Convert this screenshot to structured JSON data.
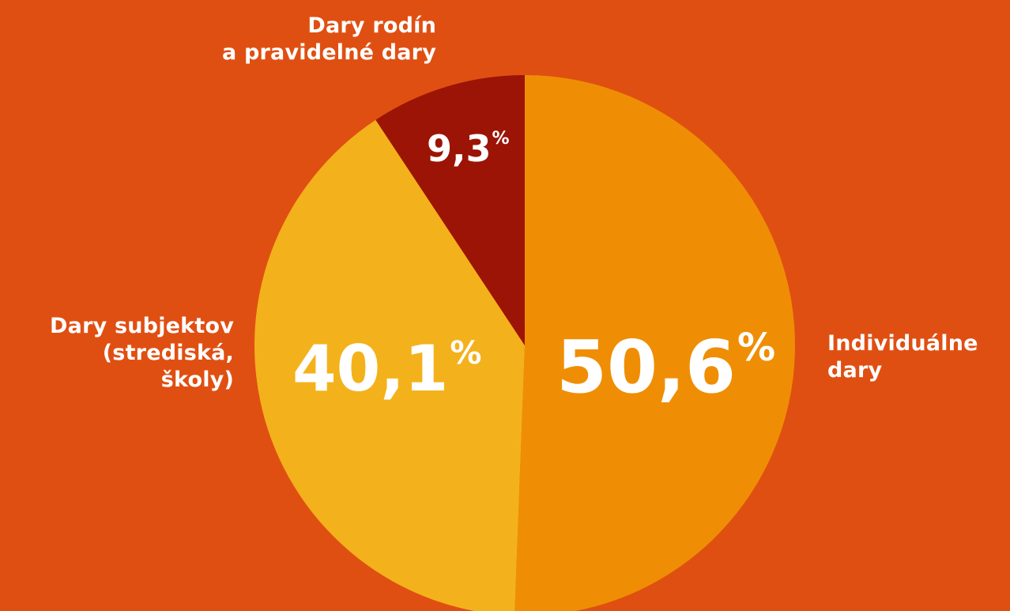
{
  "chart_data": {
    "type": "pie",
    "start_angle_deg": 0,
    "direction": "clockwise",
    "slices": [
      {
        "key": "individual",
        "label_lines": [
          "Individuálne",
          "dary"
        ],
        "value": 50.6,
        "display_number": "50,6",
        "display_unit": "%",
        "color": "#EF8E04"
      },
      {
        "key": "subjects",
        "label_lines": [
          "Dary subjektov",
          "(strediská,",
          "školy)"
        ],
        "value": 40.1,
        "display_number": "40,1",
        "display_unit": "%",
        "color": "#F3B21B"
      },
      {
        "key": "families",
        "label_lines": [
          "Dary rodín",
          "a  pravidelné dary"
        ],
        "value": 9.3,
        "display_number": "9,3",
        "display_unit": "%",
        "color": "#9C1405"
      }
    ]
  }
}
